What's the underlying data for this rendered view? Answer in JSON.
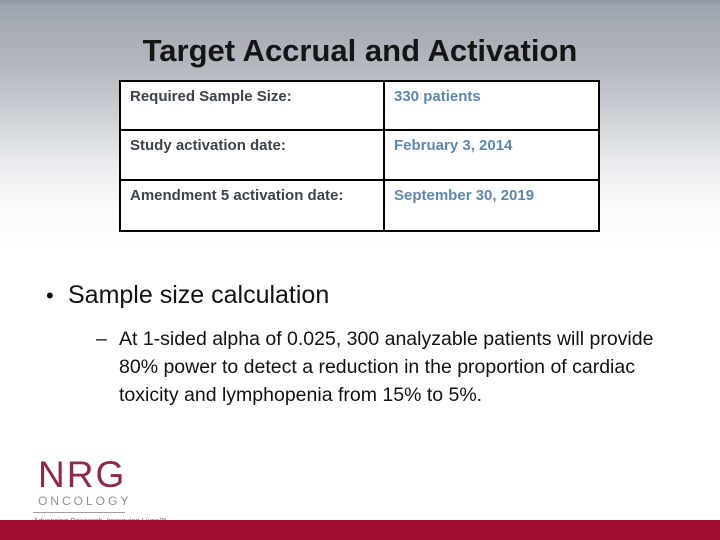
{
  "slide": {
    "title": "Target Accrual and Activation",
    "table": {
      "rows": [
        {
          "label": "Required Sample Size:",
          "value": "330 patients"
        },
        {
          "label": "Study activation date:",
          "value": "February 3, 2014"
        },
        {
          "label": "Amendment 5 activation date:",
          "value": "September 30, 2019"
        }
      ]
    },
    "bullets": {
      "main_marker": "•",
      "main": "Sample size calculation",
      "sub_marker": "–",
      "sub": "At 1-sided alpha of 0.025, 300 analyzable patients will provide 80% power to detect a reduction in the proportion of cardiac toxicity and lymphopenia from 15% to 5%."
    },
    "logo": {
      "name": "NRG",
      "subtitle": "ONCOLOGY",
      "tagline": "Advancing Research, Improving Lives™"
    },
    "colors": {
      "accent_maroon": "#8E2946",
      "footer_bar": "#A00D31",
      "table_value_blue": "#5E87B0",
      "table_label_slate": "#3C434C"
    }
  }
}
